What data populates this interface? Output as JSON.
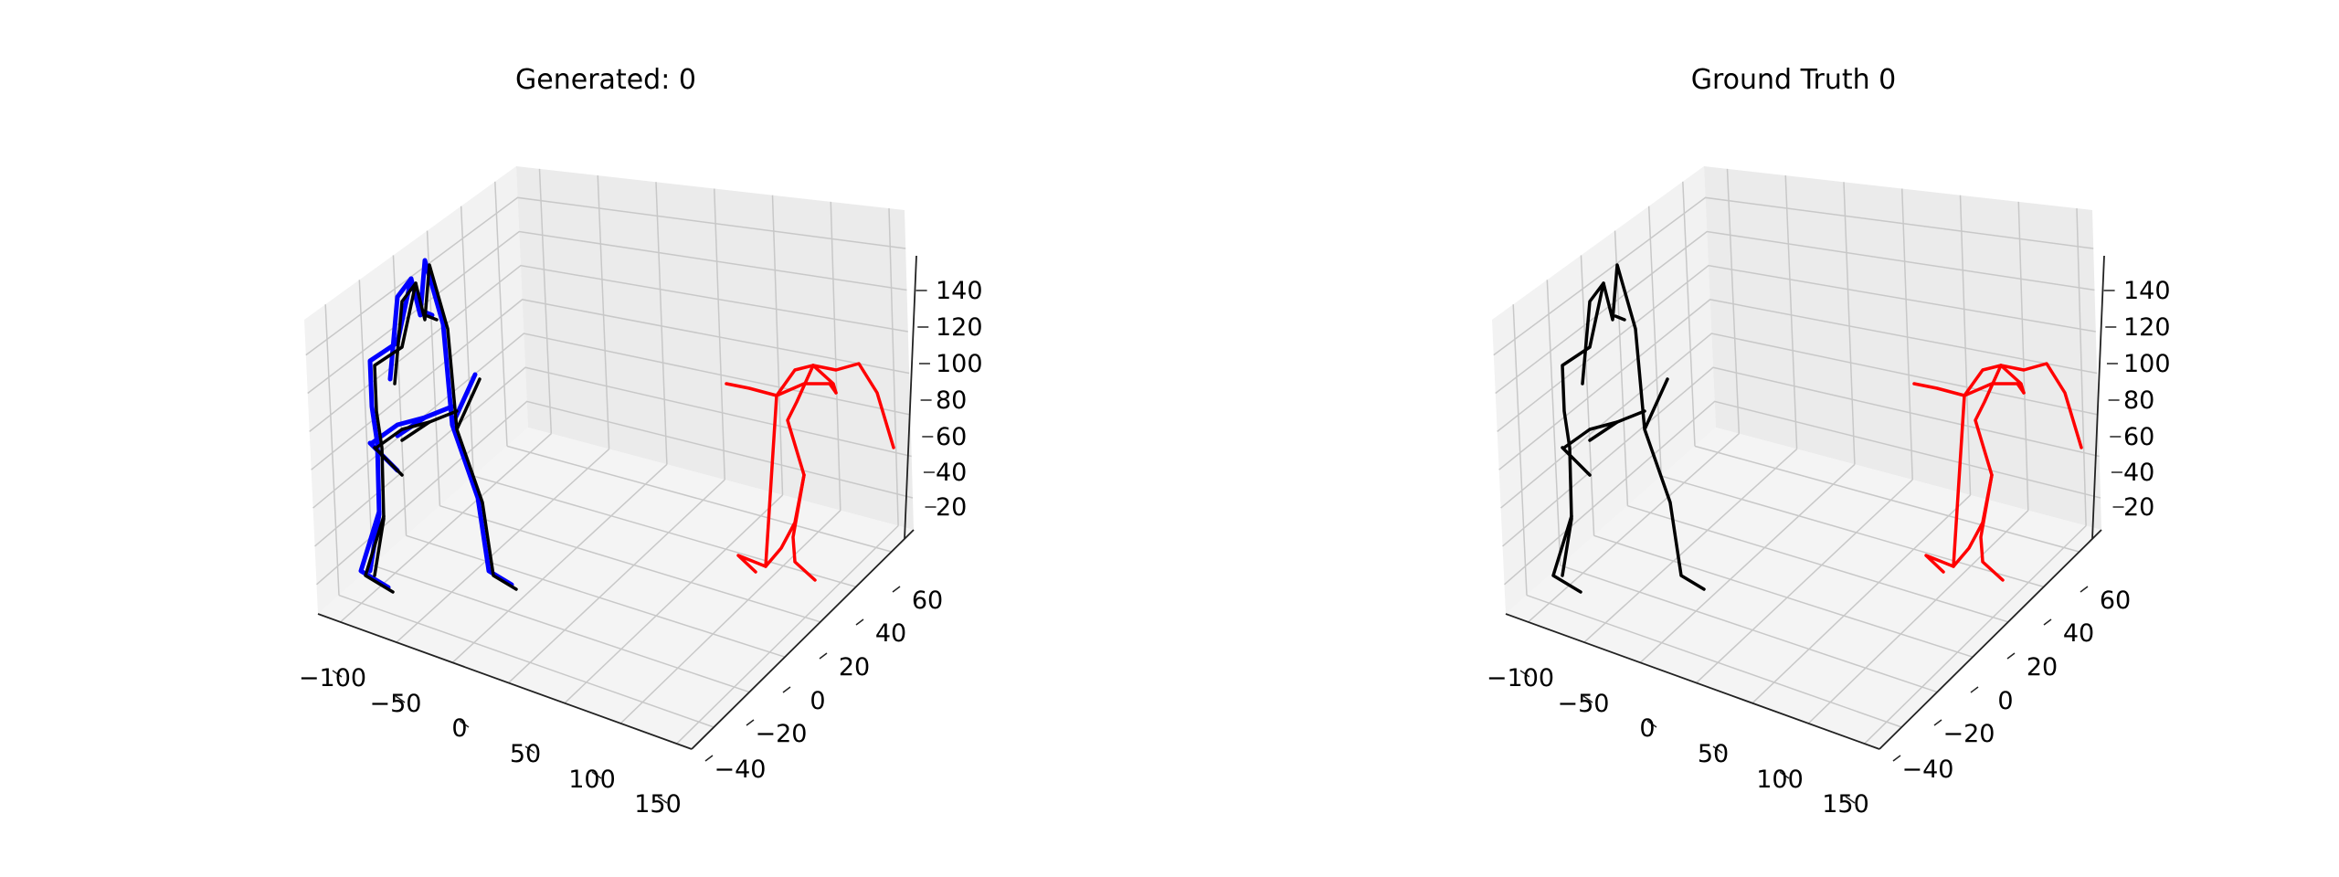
{
  "chart_data": [
    {
      "type": "3d-line",
      "title": "Generated: 0",
      "x_ticks": [
        "−100",
        "−50",
        "0",
        "50",
        "100",
        "150"
      ],
      "y_ticks": [
        "−40",
        "−20",
        "0",
        "20",
        "40",
        "60"
      ],
      "z_ticks": [
        "20",
        "40",
        "60",
        "80",
        "100",
        "120",
        "140"
      ],
      "grid": true,
      "series": [
        {
          "color": "#0000ff",
          "skeleton": "generated-left",
          "offset": true
        },
        {
          "color": "#000000",
          "skeleton": "left"
        },
        {
          "color": "#ff0000",
          "skeleton": "right"
        }
      ]
    },
    {
      "type": "3d-line",
      "title": "Ground Truth 0",
      "x_ticks": [
        "−100",
        "−50",
        "0",
        "50",
        "100",
        "150"
      ],
      "y_ticks": [
        "−40",
        "−20",
        "0",
        "20",
        "40",
        "60"
      ],
      "z_ticks": [
        "20",
        "40",
        "60",
        "80",
        "100",
        "120",
        "140"
      ],
      "grid": true,
      "series": [
        {
          "color": "#000000",
          "skeleton": "left"
        },
        {
          "color": "#ff0000",
          "skeleton": "right"
        }
      ]
    }
  ]
}
